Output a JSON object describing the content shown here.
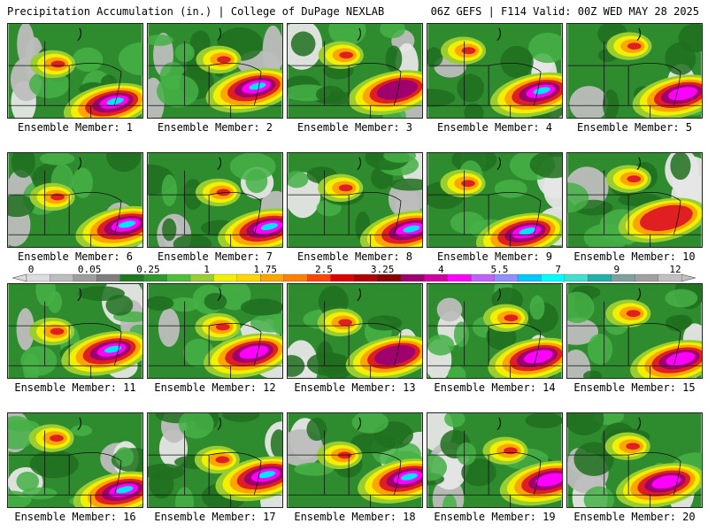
{
  "header": {
    "title": "Precipitation Accumulation (in.) | College of DuPage NEXLAB",
    "run_info": "06Z GEFS | F114 Valid: 00Z WED MAY 28 2025"
  },
  "member_label_prefix": "Ensemble Member:",
  "members": [
    {
      "id": 1,
      "label": "1",
      "max_level": 9
    },
    {
      "id": 2,
      "label": "2",
      "max_level": 9
    },
    {
      "id": 3,
      "label": "3",
      "max_level": 7
    },
    {
      "id": 4,
      "label": "4",
      "max_level": 9
    },
    {
      "id": 5,
      "label": "5",
      "max_level": 8
    },
    {
      "id": 6,
      "label": "6",
      "max_level": 9
    },
    {
      "id": 7,
      "label": "7",
      "max_level": 9
    },
    {
      "id": 8,
      "label": "8",
      "max_level": 9
    },
    {
      "id": 9,
      "label": "9",
      "max_level": 9
    },
    {
      "id": 10,
      "label": "10",
      "max_level": 6
    },
    {
      "id": 11,
      "label": "11",
      "max_level": 9
    },
    {
      "id": 12,
      "label": "12",
      "max_level": 8
    },
    {
      "id": 13,
      "label": "13",
      "max_level": 7
    },
    {
      "id": 14,
      "label": "14",
      "max_level": 8
    },
    {
      "id": 15,
      "label": "15",
      "max_level": 8
    },
    {
      "id": 16,
      "label": "16",
      "max_level": 9
    },
    {
      "id": 17,
      "label": "17",
      "max_level": 9
    },
    {
      "id": 18,
      "label": "18",
      "max_level": 9
    },
    {
      "id": 19,
      "label": "19",
      "max_level": 8
    },
    {
      "id": 20,
      "label": "20",
      "max_level": 8
    }
  ],
  "colorbar": {
    "labels": [
      "0",
      "0.05",
      "0.25",
      "1",
      "1.75",
      "2.5",
      "3.25",
      "4",
      "5.5",
      "7",
      "9",
      "12"
    ],
    "colors": [
      "#dcdcdc",
      "#bdbdbd",
      "#9e9e9e",
      "#7f7f7f",
      "#1f7a1f",
      "#2e9a2e",
      "#4fbf3a",
      "#9acd32",
      "#f0f000",
      "#ffd700",
      "#ffa500",
      "#ff7f00",
      "#ff4500",
      "#e00000",
      "#b00000",
      "#8b0000",
      "#a0006e",
      "#d000a0",
      "#ff00ff",
      "#c060ff",
      "#8f8fff",
      "#00c8ff",
      "#00ffff",
      "#40e0d0",
      "#20b2aa",
      "#7fa0a0",
      "#a0a0a0",
      "#c0c0c0"
    ]
  }
}
